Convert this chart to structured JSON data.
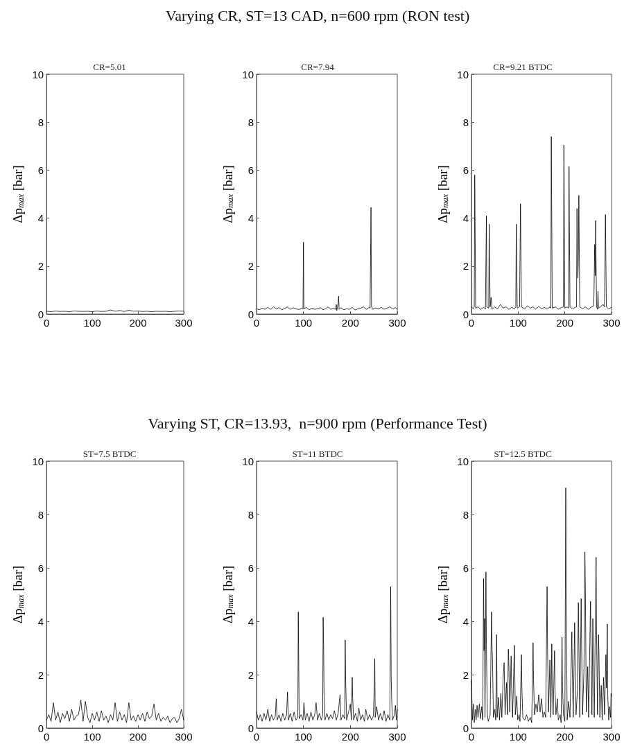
{
  "chart_data": [
    {
      "type": "line",
      "title": "CR=5.01",
      "ylabel": "Δp$_{max}$ [bar]",
      "color": "#000000",
      "marker": "none",
      "line_style": "solid",
      "grid": false,
      "xlim": [
        0,
        300
      ],
      "xticks": [
        0,
        100,
        200,
        300
      ],
      "ylim": [
        0,
        10
      ],
      "yticks": [
        0,
        2,
        4,
        6,
        8,
        10
      ],
      "x": [
        0,
        10,
        20,
        30,
        40,
        50,
        60,
        70,
        80,
        90,
        100,
        110,
        120,
        130,
        140,
        150,
        160,
        170,
        180,
        190,
        200,
        210,
        220,
        230,
        240,
        250,
        260,
        270,
        280,
        290,
        300
      ],
      "values": [
        0.12,
        0.1,
        0.13,
        0.11,
        0.12,
        0.1,
        0.13,
        0.12,
        0.11,
        0.12,
        0.1,
        0.13,
        0.11,
        0.12,
        0.17,
        0.12,
        0.15,
        0.11,
        0.16,
        0.12,
        0.13,
        0.11,
        0.12,
        0.1,
        0.12,
        0.11,
        0.12,
        0.1,
        0.12,
        0.13,
        0.12
      ]
    },
    {
      "type": "line",
      "title": "CR=7.94",
      "ylabel": "Δp$_{max}$ [bar]",
      "annotations": [
        "Varying CR, ST=13 CAD, n=600 rpm (RON test)"
      ],
      "color": "#000000",
      "marker": "none",
      "line_style": "solid",
      "grid": false,
      "xlim": [
        0,
        300
      ],
      "xticks": [
        0,
        100,
        200,
        300
      ],
      "ylim": [
        0,
        10
      ],
      "yticks": [
        0,
        2,
        4,
        6,
        8,
        10
      ],
      "x": [
        0,
        6,
        12,
        18,
        24,
        30,
        36,
        42,
        48,
        54,
        60,
        66,
        72,
        78,
        84,
        90,
        96,
        99,
        100,
        101,
        106,
        112,
        118,
        124,
        130,
        136,
        142,
        148,
        152,
        158,
        164,
        169,
        170,
        171,
        174,
        175,
        176,
        180,
        186,
        192,
        198,
        204,
        210,
        216,
        222,
        228,
        234,
        240,
        242,
        243,
        244,
        245,
        248,
        254,
        260,
        266,
        272,
        278,
        284,
        290,
        296,
        300
      ],
      "values": [
        0.22,
        0.18,
        0.25,
        0.2,
        0.28,
        0.2,
        0.3,
        0.22,
        0.27,
        0.18,
        0.24,
        0.3,
        0.2,
        0.26,
        0.22,
        0.19,
        0.25,
        0.2,
        3.0,
        0.22,
        0.28,
        0.18,
        0.25,
        0.2,
        0.22,
        0.27,
        0.18,
        0.23,
        0.3,
        0.2,
        0.24,
        0.2,
        0.4,
        0.15,
        0.45,
        0.75,
        0.2,
        0.26,
        0.18,
        0.22,
        0.2,
        0.28,
        0.17,
        0.22,
        0.25,
        0.3,
        0.2,
        0.28,
        0.25,
        2.3,
        4.45,
        0.3,
        0.2,
        0.26,
        0.22,
        0.28,
        0.2,
        0.25,
        0.3,
        0.22,
        0.27,
        0.22
      ]
    },
    {
      "type": "line",
      "title": "CR=9.21 BTDC",
      "ylabel": "Δp$_{max}$ [bar]",
      "color": "#000000",
      "marker": "none",
      "line_style": "solid",
      "grid": false,
      "xlim": [
        0,
        300
      ],
      "xticks": [
        0,
        100,
        200,
        300
      ],
      "ylim": [
        0,
        10
      ],
      "yticks": [
        0,
        2,
        4,
        6,
        8,
        10
      ],
      "x": [
        0,
        4,
        6,
        7,
        8,
        9,
        14,
        20,
        26,
        30,
        31,
        32,
        33,
        37,
        38,
        39,
        40,
        42,
        44,
        50,
        56,
        62,
        68,
        74,
        80,
        86,
        92,
        95,
        96,
        97,
        98,
        103,
        104,
        105,
        106,
        107,
        114,
        120,
        126,
        132,
        138,
        144,
        150,
        156,
        162,
        168,
        170,
        171,
        172,
        173,
        180,
        186,
        192,
        197,
        198,
        199,
        200,
        205,
        208,
        209,
        210,
        211,
        216,
        222,
        225,
        226,
        227,
        228,
        229,
        230,
        231,
        232,
        238,
        244,
        250,
        256,
        262,
        264,
        265,
        266,
        267,
        268,
        270,
        271,
        272,
        276,
        282,
        285,
        287,
        288,
        289,
        294,
        300
      ],
      "values": [
        0.3,
        0.22,
        0.3,
        5.8,
        3.1,
        0.25,
        0.3,
        0.2,
        0.28,
        0.22,
        2.2,
        4.1,
        0.3,
        0.25,
        3.75,
        2.0,
        0.3,
        0.7,
        0.2,
        0.3,
        0.22,
        0.4,
        0.25,
        0.3,
        0.2,
        0.28,
        0.22,
        0.3,
        3.75,
        2.0,
        0.25,
        0.3,
        2.4,
        4.6,
        2.5,
        0.3,
        0.22,
        0.35,
        0.25,
        0.3,
        0.2,
        0.32,
        0.22,
        0.28,
        0.2,
        0.3,
        0.25,
        7.4,
        3.9,
        0.25,
        0.3,
        0.2,
        0.27,
        0.3,
        7.05,
        3.7,
        0.25,
        0.3,
        0.25,
        6.15,
        3.2,
        0.3,
        0.22,
        0.28,
        0.3,
        4.4,
        2.4,
        1.5,
        2.4,
        4.95,
        2.55,
        0.3,
        0.22,
        0.3,
        0.2,
        0.28,
        0.35,
        2.9,
        1.6,
        3.9,
        2.0,
        0.3,
        0.2,
        0.95,
        0.25,
        0.3,
        0.4,
        0.3,
        4.15,
        2.2,
        0.3,
        0.22,
        0.28
      ]
    },
    {
      "type": "line",
      "title": "ST=7.5 BTDC",
      "ylabel": "Δp$_{max}$ [bar]",
      "color": "#000000",
      "marker": "none",
      "line_style": "solid",
      "grid": false,
      "xlim": [
        0,
        300
      ],
      "xticks": [
        0,
        100,
        200,
        300
      ],
      "ylim": [
        0,
        10
      ],
      "yticks": [
        0,
        2,
        4,
        6,
        8,
        10
      ],
      "x": [
        0,
        5,
        10,
        15,
        20,
        25,
        30,
        35,
        40,
        45,
        50,
        55,
        60,
        65,
        70,
        75,
        80,
        85,
        90,
        95,
        100,
        105,
        110,
        115,
        120,
        125,
        130,
        135,
        140,
        145,
        150,
        155,
        160,
        165,
        170,
        175,
        180,
        185,
        190,
        195,
        200,
        205,
        210,
        215,
        220,
        225,
        230,
        235,
        240,
        245,
        250,
        255,
        260,
        265,
        270,
        275,
        280,
        285,
        290,
        295,
        300
      ],
      "values": [
        0.3,
        0.5,
        0.25,
        0.95,
        0.3,
        0.6,
        0.2,
        0.55,
        0.35,
        0.65,
        0.25,
        0.7,
        0.3,
        0.45,
        0.5,
        1.05,
        0.25,
        1.0,
        0.4,
        0.2,
        0.55,
        0.3,
        0.6,
        0.25,
        0.65,
        0.3,
        0.45,
        0.2,
        0.5,
        0.3,
        0.95,
        0.25,
        0.6,
        0.3,
        0.5,
        0.2,
        0.95,
        0.3,
        0.45,
        0.25,
        0.5,
        0.3,
        0.55,
        0.25,
        0.6,
        0.35,
        0.45,
        0.9,
        0.3,
        0.55,
        0.25,
        0.4,
        0.3,
        0.45,
        0.2,
        0.35,
        0.4,
        0.2,
        0.35,
        0.7,
        0.3
      ]
    },
    {
      "type": "line",
      "title": "ST=11 BTDC",
      "ylabel": "Δp$_{max}$ [bar]",
      "annotations": [
        "Varying ST, CR=13.93,  n=900 rpm (Performance Test)"
      ],
      "color": "#000000",
      "marker": "none",
      "line_style": "solid",
      "grid": false,
      "xlim": [
        0,
        300
      ],
      "xticks": [
        0,
        100,
        200,
        300
      ],
      "ylim": [
        0,
        10
      ],
      "yticks": [
        0,
        2,
        4,
        6,
        8,
        10
      ],
      "x": [
        0,
        4,
        8,
        12,
        16,
        20,
        24,
        28,
        32,
        36,
        40,
        42,
        44,
        48,
        52,
        56,
        60,
        64,
        66,
        68,
        72,
        76,
        80,
        84,
        88,
        89,
        90,
        91,
        95,
        99,
        101,
        104,
        108,
        112,
        116,
        120,
        124,
        127,
        130,
        134,
        138,
        141,
        142,
        143,
        144,
        146,
        150,
        154,
        158,
        162,
        166,
        170,
        174,
        178,
        180,
        184,
        188,
        189,
        190,
        192,
        196,
        200,
        202,
        204,
        205,
        207,
        211,
        215,
        218,
        222,
        226,
        230,
        233,
        237,
        241,
        245,
        249,
        251,
        252,
        253,
        256,
        260,
        264,
        268,
        272,
        276,
        280,
        284,
        285,
        286,
        287,
        288,
        290,
        294,
        296,
        298,
        300
      ],
      "values": [
        0.6,
        0.3,
        0.5,
        0.25,
        0.55,
        0.3,
        0.7,
        0.25,
        0.5,
        0.3,
        0.45,
        1.1,
        0.3,
        0.5,
        0.25,
        0.55,
        0.3,
        0.5,
        1.35,
        0.3,
        0.55,
        0.25,
        0.6,
        0.3,
        0.4,
        4.35,
        2.3,
        0.35,
        0.5,
        0.3,
        0.95,
        0.3,
        0.55,
        0.25,
        0.6,
        0.3,
        0.5,
        0.95,
        0.3,
        0.55,
        0.3,
        0.5,
        4.15,
        3.1,
        1.2,
        0.3,
        0.55,
        0.3,
        0.5,
        0.35,
        0.65,
        0.3,
        0.55,
        1.25,
        0.3,
        0.5,
        0.35,
        3.3,
        1.75,
        0.3,
        0.6,
        0.9,
        0.3,
        1.9,
        1.1,
        0.3,
        0.55,
        0.25,
        0.75,
        0.3,
        0.5,
        0.25,
        0.7,
        0.3,
        0.5,
        0.3,
        0.45,
        1.55,
        2.6,
        0.4,
        0.8,
        0.3,
        0.55,
        0.3,
        0.65,
        0.25,
        0.5,
        0.3,
        2.8,
        5.3,
        1.95,
        1.1,
        0.3,
        0.5,
        0.85,
        0.3,
        0.7
      ]
    },
    {
      "type": "line",
      "title": "ST=12.5 BTDC",
      "ylabel": "Δp$_{max}$ [bar]",
      "color": "#000000",
      "marker": "none",
      "line_style": "solid",
      "grid": false,
      "xlim": [
        0,
        300
      ],
      "xticks": [
        0,
        100,
        200,
        300
      ],
      "ylim": [
        0,
        10
      ],
      "yticks": [
        0,
        2,
        4,
        6,
        8,
        10
      ],
      "x": [
        0,
        2,
        4,
        6,
        8,
        10,
        12,
        14,
        17,
        19,
        22,
        24,
        26,
        27,
        28,
        29,
        31,
        32,
        34,
        36,
        40,
        43,
        44,
        45,
        47,
        50,
        52,
        54,
        55,
        58,
        60,
        63,
        65,
        68,
        70,
        72,
        75,
        77,
        79,
        80,
        82,
        85,
        86,
        88,
        92,
        94,
        97,
        99,
        102,
        104,
        107,
        108,
        110,
        114,
        118,
        122,
        126,
        129,
        132,
        133,
        135,
        138,
        141,
        144,
        147,
        150,
        153,
        156,
        159,
        162,
        163,
        165,
        168,
        170,
        172,
        173,
        175,
        178,
        179,
        181,
        184,
        186,
        190,
        192,
        194,
        195,
        197,
        200,
        202,
        203,
        205,
        208,
        211,
        213,
        215,
        216,
        218,
        221,
        222,
        224,
        227,
        229,
        230,
        232,
        235,
        236,
        238,
        241,
        243,
        244,
        246,
        249,
        251,
        255,
        256,
        258,
        260,
        261,
        263,
        267,
        268,
        270,
        272,
        273,
        275,
        278,
        280,
        283,
        285,
        288,
        289,
        291,
        292,
        294,
        296,
        298,
        299,
        300
      ],
      "values": [
        1.8,
        0.3,
        0.9,
        0.2,
        0.7,
        0.3,
        0.85,
        0.4,
        0.9,
        0.35,
        0.8,
        0.3,
        5.6,
        2.9,
        4.1,
        0.4,
        5.85,
        3.1,
        0.5,
        0.25,
        0.5,
        4.35,
        3.05,
        2.6,
        0.4,
        0.7,
        0.3,
        3.5,
        0.4,
        1.15,
        0.3,
        1.3,
        0.4,
        1.95,
        2.45,
        0.5,
        1.7,
        0.5,
        2.95,
        2.5,
        0.6,
        2.7,
        1.5,
        0.4,
        3.1,
        0.5,
        1.2,
        0.3,
        0.5,
        0.25,
        2.75,
        1.5,
        0.4,
        0.3,
        0.5,
        0.25,
        0.4,
        0.2,
        3.2,
        1.8,
        0.5,
        0.9,
        0.6,
        1.25,
        0.6,
        1.1,
        0.4,
        0.6,
        0.4,
        5.3,
        2.9,
        0.6,
        2.55,
        0.4,
        3.15,
        1.5,
        0.5,
        2.9,
        1.4,
        0.5,
        1.1,
        0.3,
        0.5,
        0.2,
        3.4,
        1.6,
        0.5,
        0.25,
        9.0,
        4.7,
        0.3,
        1.0,
        0.4,
        1.9,
        3.6,
        2.2,
        0.4,
        3.95,
        2.5,
        0.5,
        1.4,
        4.7,
        3.2,
        0.4,
        4.85,
        3.0,
        0.5,
        2.2,
        6.6,
        5.2,
        0.6,
        2.3,
        0.4,
        4.75,
        3.2,
        0.5,
        4.1,
        2.7,
        0.4,
        6.4,
        3.5,
        0.5,
        3.5,
        2.9,
        0.4,
        1.6,
        0.3,
        1.9,
        0.5,
        2.75,
        1.5,
        3.9,
        1.2,
        0.3,
        0.8,
        0.4,
        1.3,
        1.2
      ]
    }
  ]
}
